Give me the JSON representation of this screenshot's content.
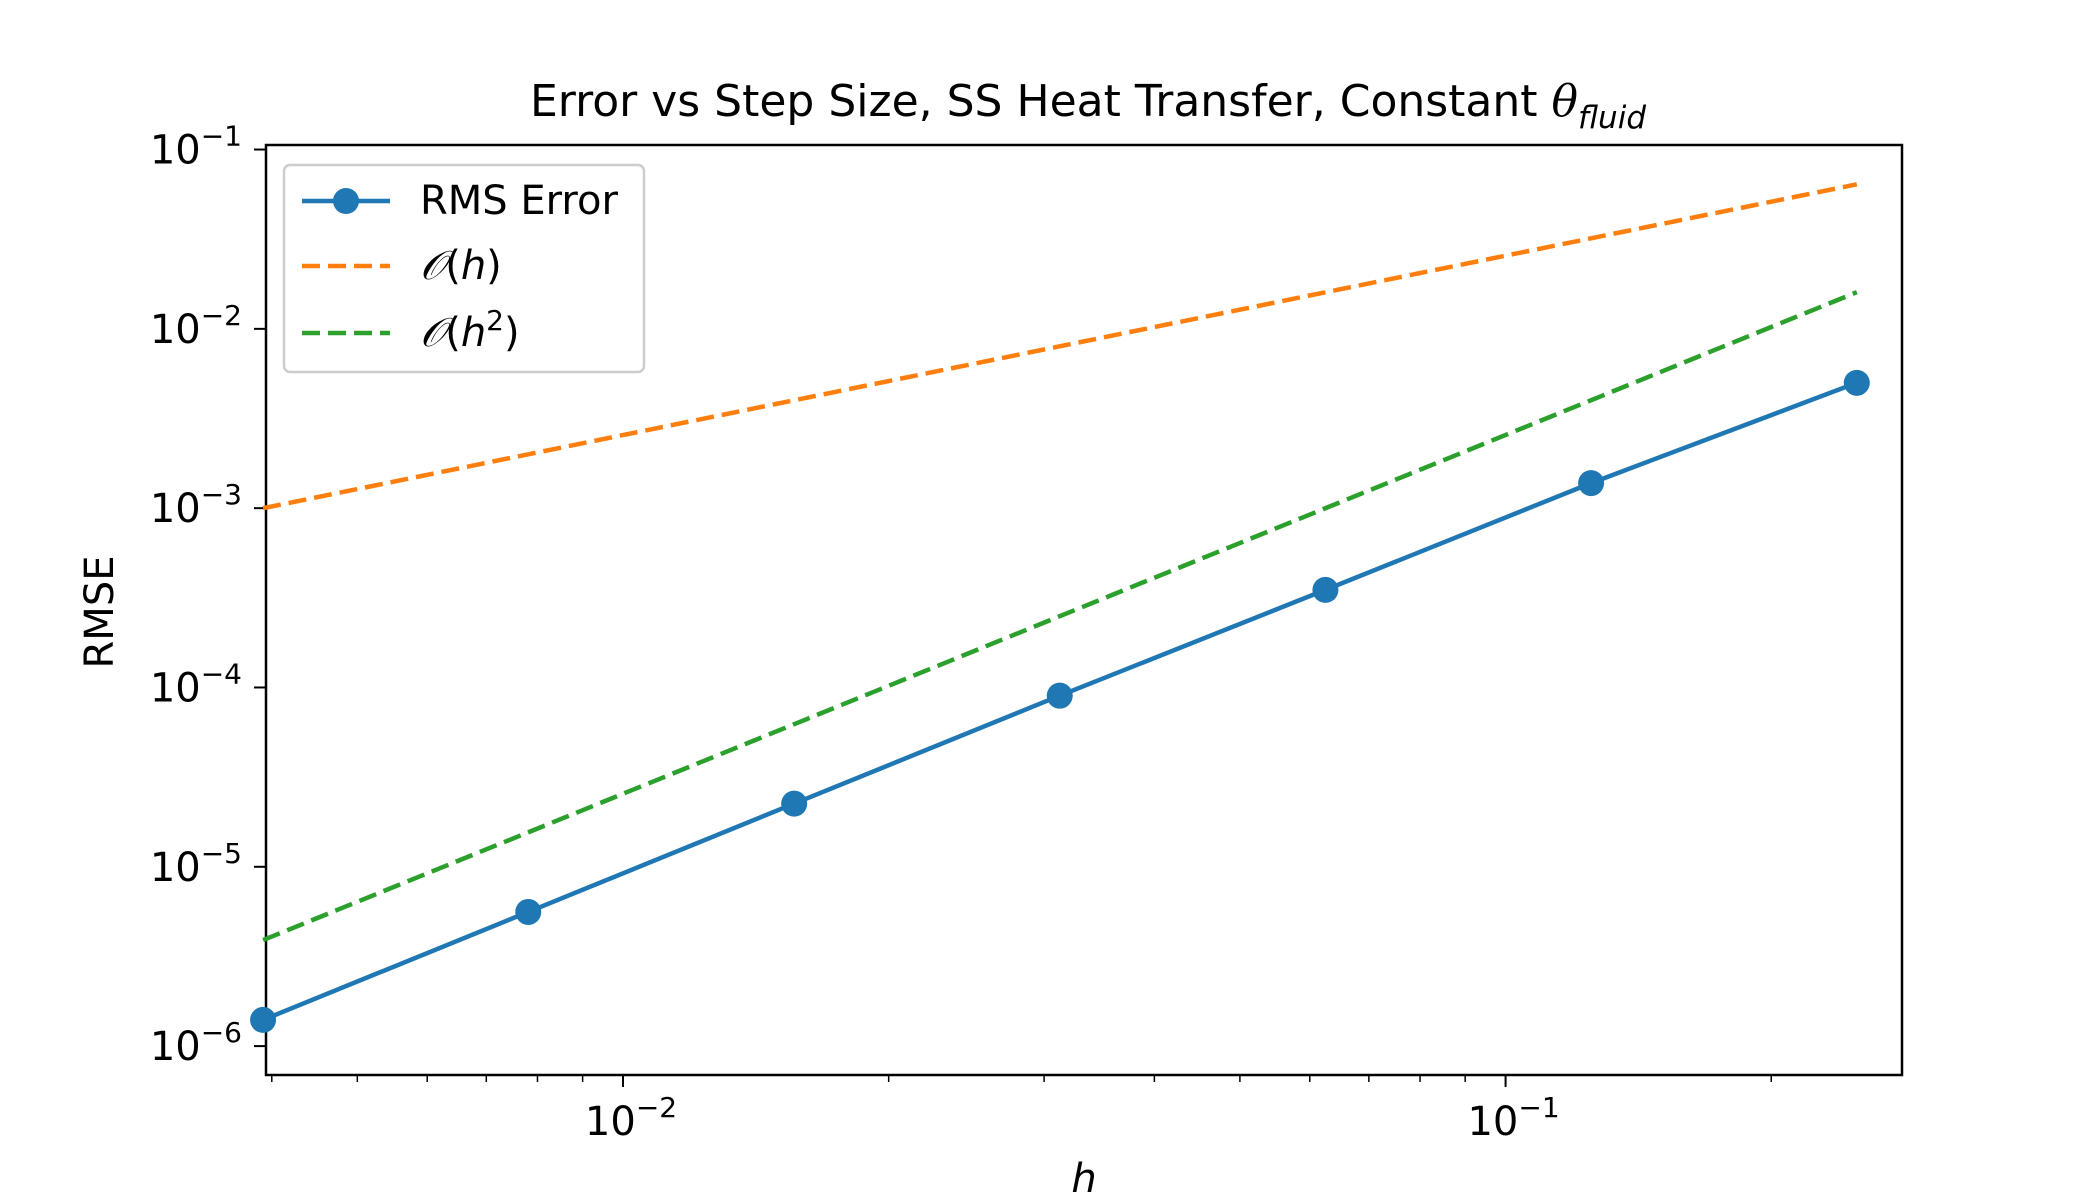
{
  "chart_data": {
    "type": "line",
    "title": {
      "main": "Error vs Step Size, SS Heat Transfer, Constant ",
      "symbol": "θ",
      "subscript": "fluid"
    },
    "xlabel": "h",
    "ylabel": "RMSE",
    "xscale": "log",
    "yscale": "log",
    "xlim": [
      0.00394,
      0.2813
    ],
    "ylim": [
      6.9e-07,
      0.106
    ],
    "x_ticks": [
      {
        "value": 0.01,
        "base": "10",
        "exp": "−2"
      },
      {
        "value": 0.1,
        "base": "10",
        "exp": "−1"
      }
    ],
    "y_ticks": [
      {
        "value": 1e-06,
        "base": "10",
        "exp": "−6"
      },
      {
        "value": 1e-05,
        "base": "10",
        "exp": "−5"
      },
      {
        "value": 0.0001,
        "base": "10",
        "exp": "−4"
      },
      {
        "value": 0.001,
        "base": "10",
        "exp": "−3"
      },
      {
        "value": 0.01,
        "base": "10",
        "exp": "−2"
      },
      {
        "value": 0.1,
        "base": "10",
        "exp": "−1"
      }
    ],
    "grid": false,
    "legend_position": "top-left",
    "series": [
      {
        "name": "RMS Error",
        "color": "#1f77b4",
        "style": "solid",
        "marker": "circle",
        "x": [
          0.00391,
          0.00781,
          0.01563,
          0.03125,
          0.0625,
          0.125,
          0.25
        ],
        "y": [
          1.4e-06,
          5.6e-06,
          2.25e-05,
          9e-05,
          0.00035,
          0.00138,
          0.005
        ]
      },
      {
        "name": "𝒪(h)",
        "color": "#ff7f0e",
        "style": "dashed",
        "marker": "none",
        "x": [
          0.00391,
          0.25
        ],
        "y": [
          0.001,
          0.064
        ]
      },
      {
        "name": "𝒪(h²)",
        "color": "#2ca02c",
        "style": "dashed",
        "marker": "none",
        "x": [
          0.00391,
          0.25
        ],
        "y": [
          3.9e-06,
          0.016
        ]
      }
    ],
    "legend_labels": [
      {
        "plain": "RMS Error"
      },
      {
        "script": "𝒪",
        "open": "(",
        "var": "h",
        "sup": "",
        "close": ")"
      },
      {
        "script": "𝒪",
        "open": "(",
        "var": "h",
        "sup": "2",
        "close": ")"
      }
    ]
  }
}
